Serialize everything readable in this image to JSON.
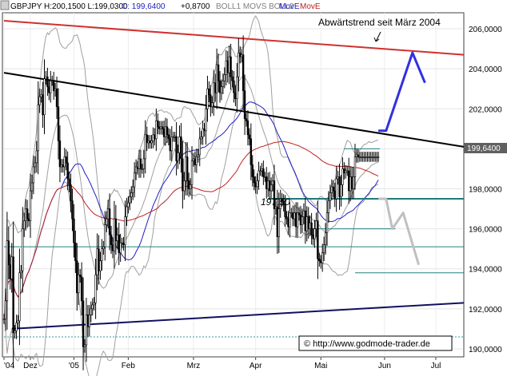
{
  "header": {
    "symbol_line": "GBPJPY H:200,1500 L:199,0300",
    "close_label": "C: 199,6400",
    "change_label": "+0,8700",
    "ind_boll": "BOLL1 MOVS BOLL2",
    "ind_move1": "MovE",
    "ind_move2": "MovE"
  },
  "annotations": {
    "trend_title": "Abwärtstrend seit März 2004",
    "level": "197,50",
    "copyright": "© http://www.godmode-trader.de"
  },
  "price_tag": "199,6400",
  "colors": {
    "background": "#ffffff",
    "candle": "#000000",
    "boll_band": "#a0a0a0",
    "ma_blue": "#2020c0",
    "ma_red": "#c02020",
    "resistance_red": "#d03030",
    "trend_black": "#000000",
    "support_navy": "#101060",
    "teal_line": "#208080",
    "projection_blue": "#3030e0",
    "projection_gray": "#c0c0c0",
    "price_tag_bg": "#606060"
  },
  "chart_data": {
    "type": "candlestick",
    "title": "",
    "xlabel": "",
    "ylabel": "",
    "ylim": [
      189.6,
      206.8
    ],
    "y_ticks": [
      "206,0000",
      "204,0000",
      "202,0000",
      "200,0000",
      "198,0000",
      "196,0000",
      "194,0000",
      "192,0000",
      "190,0000"
    ],
    "y_tick_values": [
      206,
      204,
      202,
      200,
      198,
      196,
      194,
      192,
      190
    ],
    "x_tick_labels": [
      "'04",
      "Dez",
      "'05",
      "Feb",
      "Mrz",
      "Apr",
      "Mai",
      "Jun",
      "Jul"
    ],
    "x_tick_index": [
      0,
      17,
      45,
      80,
      122,
      162,
      204,
      245,
      278
    ],
    "bars": 296,
    "close": [
      191.5,
      192.4,
      195.4,
      194.2,
      193.5,
      194.6,
      190.8,
      190.9,
      191.3,
      191.4,
      193.8,
      193.9,
      196.0,
      196.4,
      197.0,
      196.5,
      196.4,
      197.9,
      198.3,
      199.1,
      199.3,
      199.9,
      202.2,
      202.6,
      202.7,
      201.7,
      203.5,
      203.6,
      203.1,
      202.8,
      203.4,
      203.4,
      202.9,
      203.0,
      202.1,
      200.4,
      199.1,
      199.2,
      199.1,
      199.6,
      199.3,
      198.5,
      198.2,
      197.4,
      196.5,
      195.3,
      194.4,
      192.8,
      193.7,
      193.6,
      192.4,
      190.1,
      190.2,
      191.7,
      191.1,
      191.7,
      192.0,
      192.2,
      192.3,
      193.7,
      195.0,
      193.9,
      194.4,
      195.0,
      195.1,
      196.2,
      196.5,
      197.0,
      195.7,
      195.2,
      194.9,
      196.5,
      195.4,
      195.7,
      194.8,
      195.3,
      195.3,
      195.2,
      196.6,
      197.1,
      197.3,
      197.6,
      197.8,
      198.1,
      198.8,
      199.1,
      199.0,
      199.5,
      199.0,
      199.0,
      199.5,
      200.7,
      200.3,
      200.4,
      200.3,
      200.4,
      200.7,
      200.5,
      201.4,
      201.1,
      201.0,
      201.1,
      201.0,
      200.6,
      201.1,
      200.7,
      200.5,
      199.9,
      200.6,
      200.6,
      200.6,
      199.4,
      199.8,
      200.6,
      199.5,
      197.9,
      198.4,
      199.6,
      198.4,
      198.0,
      198.2,
      199.4,
      199.5,
      199.2,
      199.6,
      199.7,
      200.5,
      200.6,
      201.0,
      200.9,
      202.0,
      203.0,
      202.7,
      202.1,
      202.3,
      203.3,
      202.8,
      204.2,
      203.4,
      202.8,
      203.1,
      203.4,
      203.7,
      204.4,
      203.8,
      204.6,
      203.6,
      203.4,
      202.8,
      202.5,
      203.6,
      204.8,
      204.6,
      204.7,
      202.9,
      201.5,
      201.4,
      200.7,
      200.5,
      199.2,
      198.6,
      198.3,
      198.1,
      198.4,
      198.9,
      198.9,
      199.0,
      198.6,
      198.6,
      198.0,
      198.4,
      197.9,
      198.2,
      198.4,
      197.0,
      197.1,
      195.6,
      197.0,
      197.5,
      197.4,
      197.2,
      196.6,
      196.5,
      196.1,
      196.8,
      196.8,
      196.5,
      196.8,
      196.1,
      196.8,
      196.7,
      196.2,
      196.6,
      196.9,
      195.9,
      196.6,
      196.0,
      196.3,
      195.7,
      195.5,
      196.0,
      196.4,
      194.5,
      194.4,
      194.3,
      194.8,
      195.2,
      195.8,
      196.8,
      197.4,
      197.8,
      198.1,
      197.9,
      197.5,
      198.5,
      198.6,
      197.6,
      198.2,
      199.0,
      198.8,
      198.9,
      198.9,
      197.9,
      198.6,
      198.0,
      198.6,
      199.6,
      199.7,
      199.6,
      199.6,
      199.6,
      199.6,
      199.6,
      199.6,
      199.6,
      199.6,
      199.6,
      199.6,
      199.6,
      199.6,
      199.6,
      199.6,
      199.6,
      199.6,
      199.6,
      199.6,
      199.6,
      199.6,
      199.6,
      199.6,
      199.6,
      199.6,
      199.6,
      199.6,
      199.6,
      199.6,
      199.6,
      199.6,
      199.6,
      199.6,
      199.6,
      199.6,
      199.6,
      199.6,
      199.6,
      199.6,
      199.6,
      199.6,
      199.6,
      199.6,
      199.6,
      199.6,
      199.6,
      199.6,
      199.6,
      199.6,
      199.6,
      199.6,
      199.6,
      199.6,
      199.6,
      199.6,
      199.6,
      199.6,
      199.6,
      199.6,
      199.6,
      199.6,
      199.6,
      199.6,
      199.6,
      199.6
    ],
    "last_bar": 241,
    "levels": [
      {
        "name": "197,50",
        "value": 197.5,
        "from": 170,
        "to": 296
      },
      {
        "name": "",
        "value": 200.0,
        "from": 219,
        "to": 242
      },
      {
        "name": "",
        "value": 196.0,
        "from": 197,
        "to": 252
      },
      {
        "name": "",
        "value": 195.1,
        "from": 0,
        "to": 296
      },
      {
        "name": "",
        "value": 193.8,
        "from": 226,
        "to": 296
      },
      {
        "name": "",
        "value": 190.6,
        "from": 0,
        "to": 296
      }
    ],
    "trendlines": [
      {
        "role": "resistance",
        "points": [
          [
            0,
            206.4
          ],
          [
            296,
            204.7
          ]
        ]
      },
      {
        "role": "descending",
        "points": [
          [
            0,
            203.8
          ],
          [
            296,
            200.1
          ]
        ]
      },
      {
        "role": "support",
        "points": [
          [
            5,
            191.0
          ],
          [
            296,
            192.3
          ]
        ]
      }
    ],
    "projections": [
      {
        "role": "bullish",
        "points": [
          [
            241,
            200.9
          ],
          [
            246,
            200.9
          ],
          [
            263,
            204.8
          ],
          [
            271,
            203.3
          ]
        ]
      },
      {
        "role": "bearish",
        "points": [
          [
            241,
            197.5
          ],
          [
            246,
            197.5
          ],
          [
            250,
            196.0
          ],
          [
            257,
            196.8
          ],
          [
            267,
            194.2
          ]
        ]
      }
    ]
  }
}
